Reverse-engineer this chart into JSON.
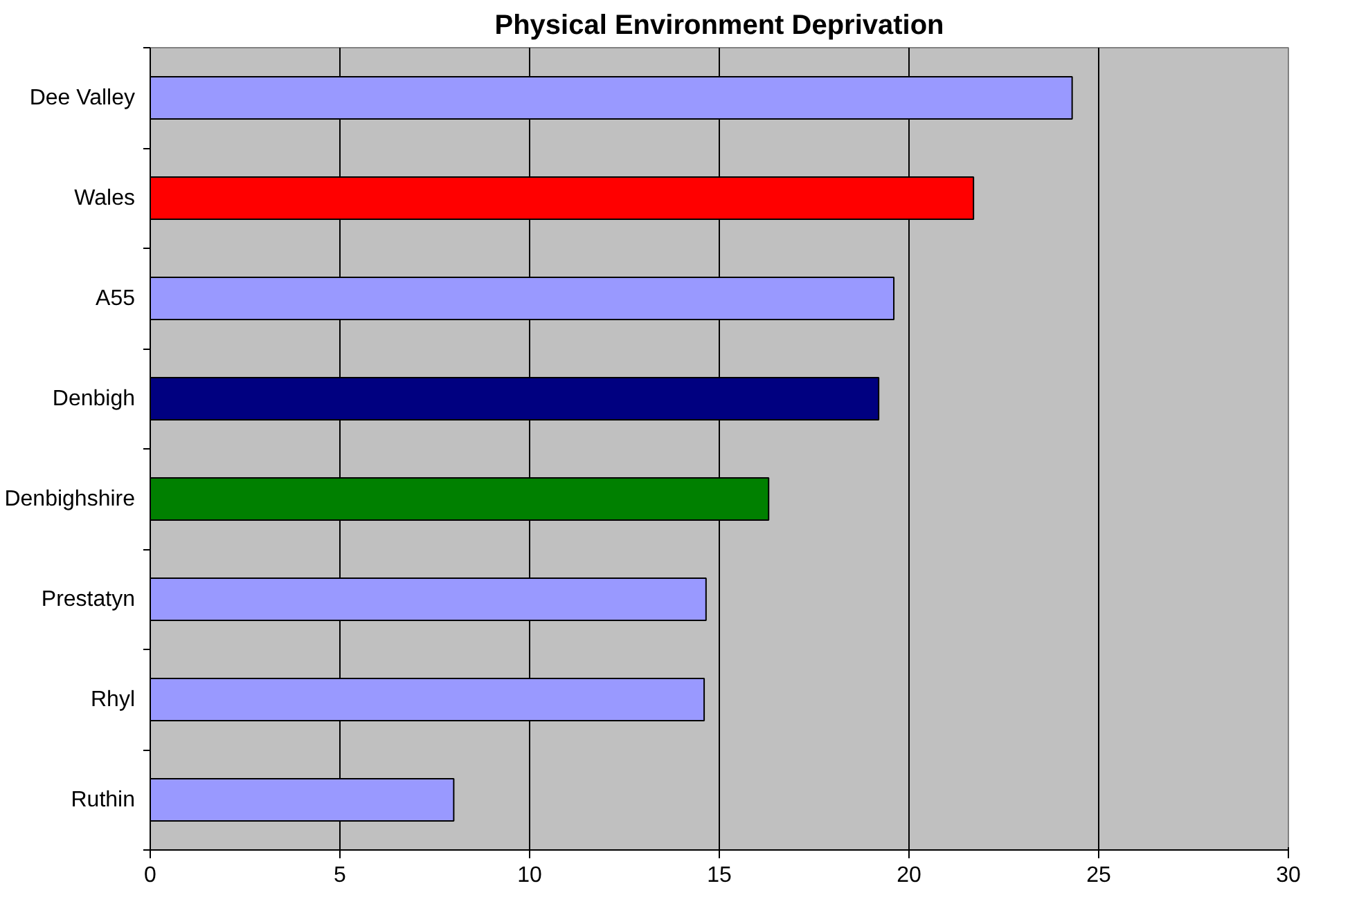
{
  "chart_data": {
    "type": "bar",
    "orientation": "horizontal",
    "title": "Physical Environment Deprivation",
    "categories": [
      "Dee Valley",
      "Wales",
      "A55",
      "Denbigh",
      "Denbighshire",
      "Prestatyn",
      "Rhyl",
      "Ruthin"
    ],
    "values": [
      24.3,
      21.7,
      19.6,
      19.2,
      16.3,
      14.65,
      14.6,
      8.0
    ],
    "colors": [
      "#9999ff",
      "#ff0000",
      "#9999ff",
      "#000080",
      "#008000",
      "#9999ff",
      "#9999ff",
      "#9999ff"
    ],
    "xlim": [
      0,
      30
    ],
    "xticks": [
      0,
      5,
      10,
      15,
      20,
      25,
      30
    ],
    "grid": "x"
  }
}
